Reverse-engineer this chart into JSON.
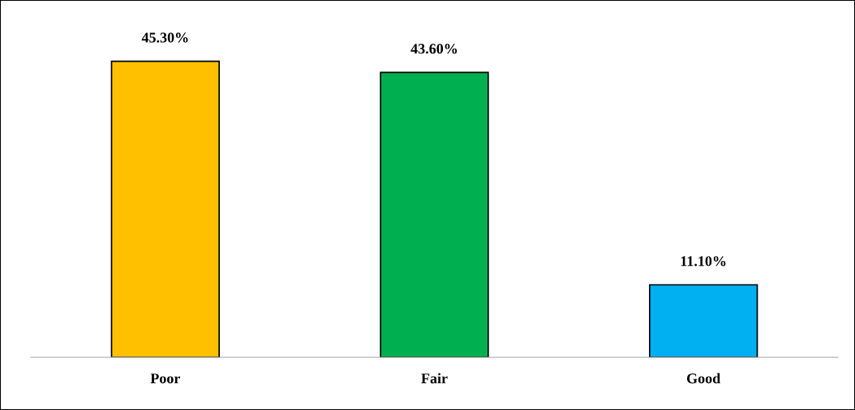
{
  "chart_data": {
    "type": "bar",
    "categories": [
      "Poor",
      "Fair",
      "Good"
    ],
    "values": [
      45.3,
      43.6,
      11.1
    ],
    "colors": [
      "#ffc000",
      "#00b050",
      "#00b0f0"
    ],
    "value_labels": [
      "45.30%",
      "43.60%",
      "11.10%"
    ]
  }
}
